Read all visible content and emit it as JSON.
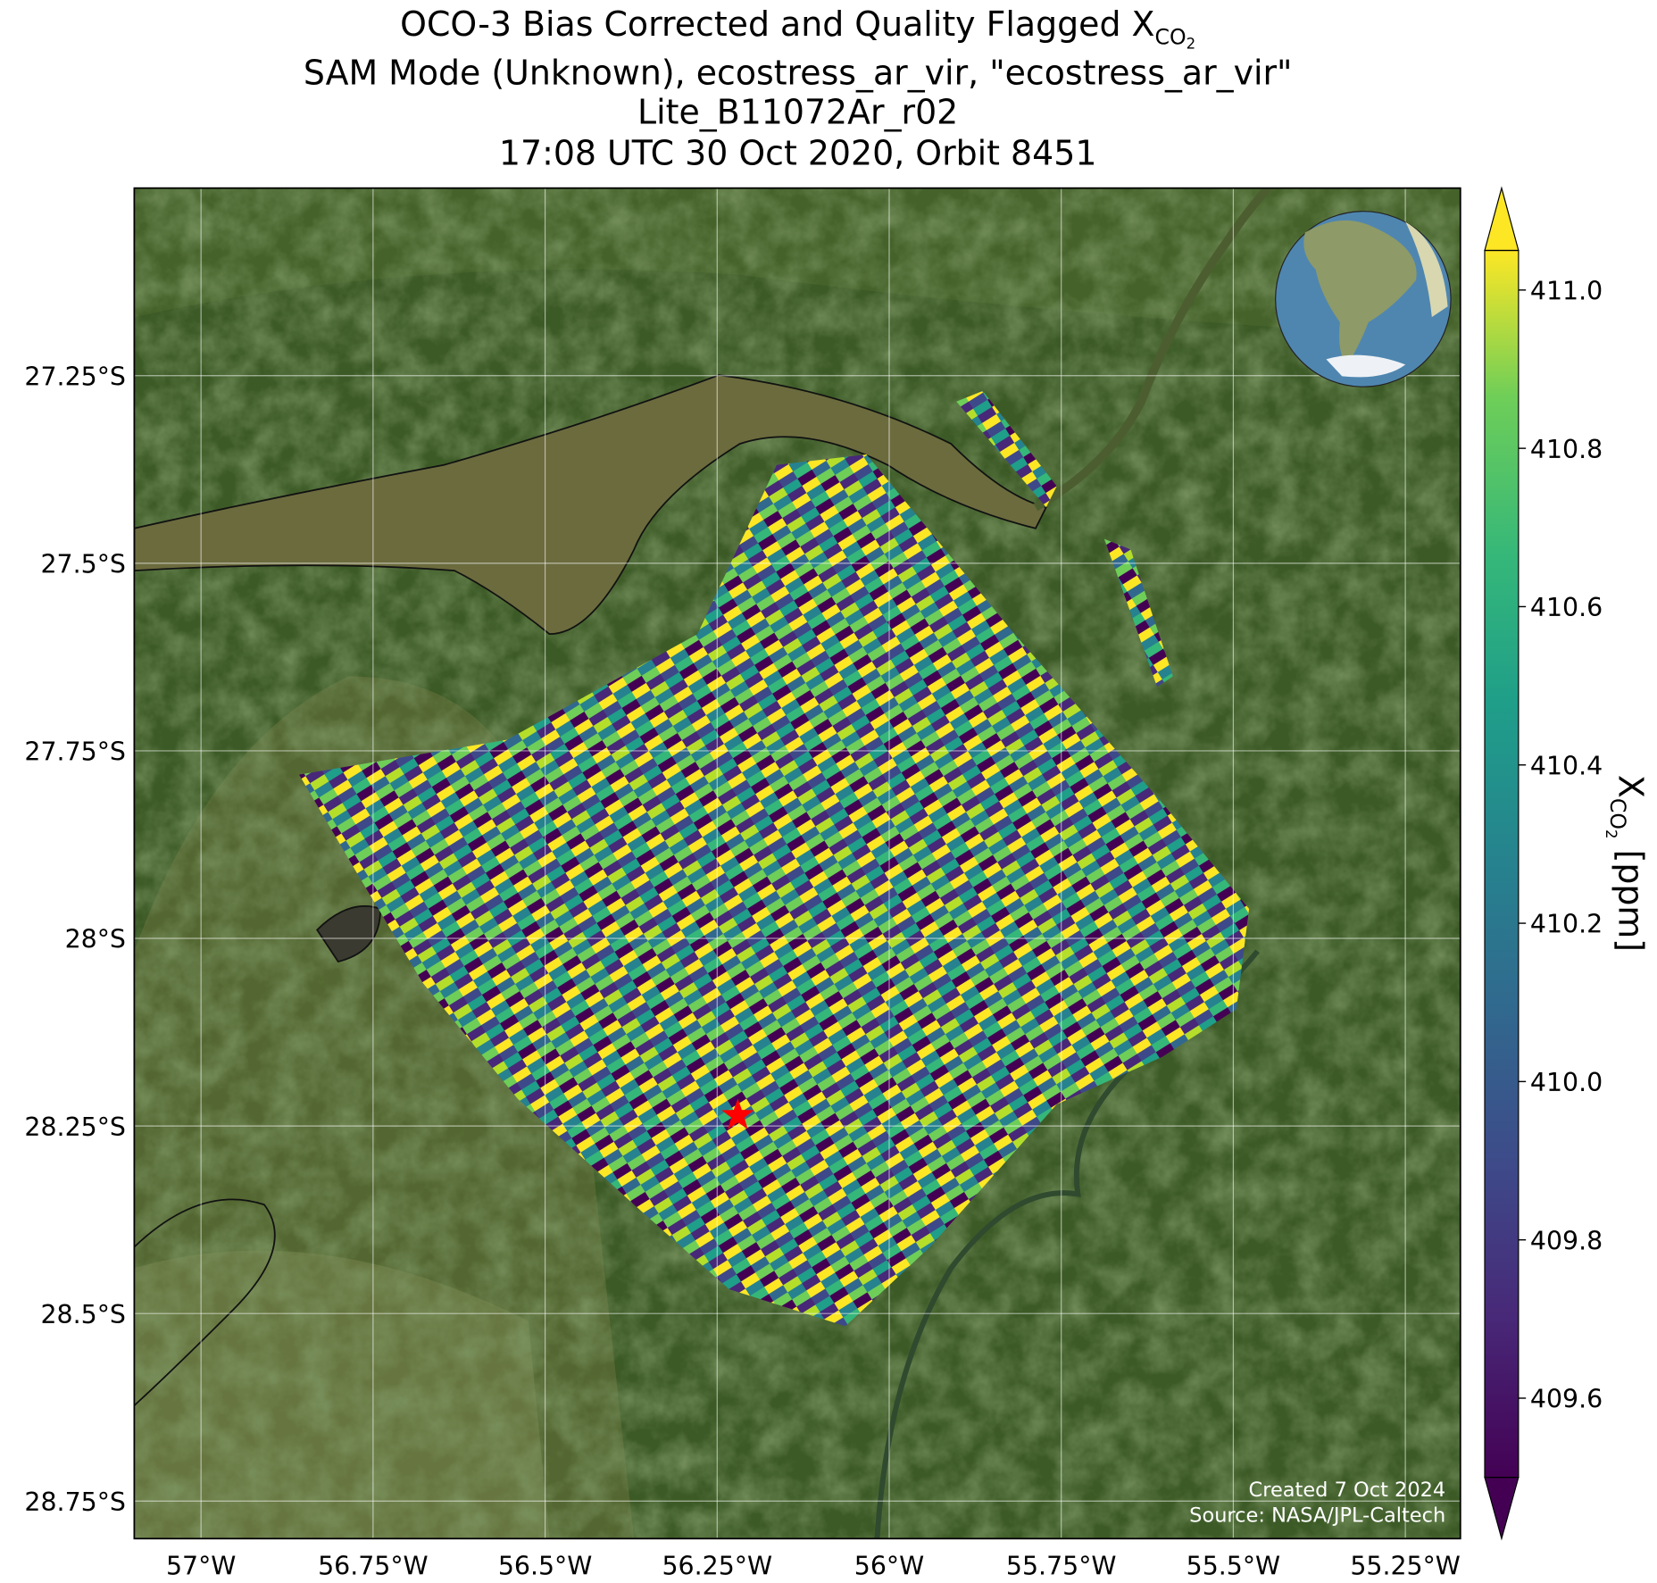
{
  "chart_data": {
    "type": "map",
    "title": {
      "line1": "OCO-3 Bias Corrected and Quality Flagged",
      "symbol": "X",
      "symbol_sub": "CO",
      "symbol_subsub": "2",
      "line2": "SAM Mode (Unknown), ecostress_ar_vir, \"ecostress_ar_vir\"",
      "line3": "Lite_B11072Ar_r02",
      "line4": "17:08 UTC 30 Oct 2020, Orbit 8451"
    },
    "xlim": [
      -57.097,
      -55.17
    ],
    "ylim": [
      -28.8,
      -27.0
    ],
    "xticks": [
      {
        "value": -57,
        "label": "57°W"
      },
      {
        "value": -56.75,
        "label": "56.75°W"
      },
      {
        "value": -56.5,
        "label": "56.5°W"
      },
      {
        "value": -56.25,
        "label": "56.25°W"
      },
      {
        "value": -56,
        "label": "56°W"
      },
      {
        "value": -55.75,
        "label": "55.75°W"
      },
      {
        "value": -55.5,
        "label": "55.5°W"
      },
      {
        "value": -55.25,
        "label": "55.25°W"
      }
    ],
    "yticks": [
      {
        "value": -27.25,
        "label": "27.25°S"
      },
      {
        "value": -27.5,
        "label": "27.5°S"
      },
      {
        "value": -27.75,
        "label": "27.75°S"
      },
      {
        "value": -28,
        "label": "28°S"
      },
      {
        "value": -28.25,
        "label": "28.25°S"
      },
      {
        "value": -28.5,
        "label": "28.5°S"
      },
      {
        "value": -28.75,
        "label": "28.75°S"
      }
    ],
    "grid": true,
    "target": {
      "lon": -56.22,
      "lat": -28.236,
      "color": "#ff0000"
    },
    "colorbar": {
      "label_symbol": "X",
      "label_sub": "CO",
      "label_subsub": "2",
      "label_unit": "[ppm]",
      "colormap": "viridis",
      "clim": [
        409.5,
        411.05
      ],
      "ticks": [
        409.6,
        409.8,
        {
          "value": 410.0,
          "label": "410.0"
        },
        410.2,
        410.4,
        410.6,
        410.8,
        {
          "value": 411.0,
          "label": "411.0"
        }
      ]
    },
    "credits": [
      "Created 7 Oct 2024",
      "Source: NASA/JPL-Caltech"
    ]
  }
}
